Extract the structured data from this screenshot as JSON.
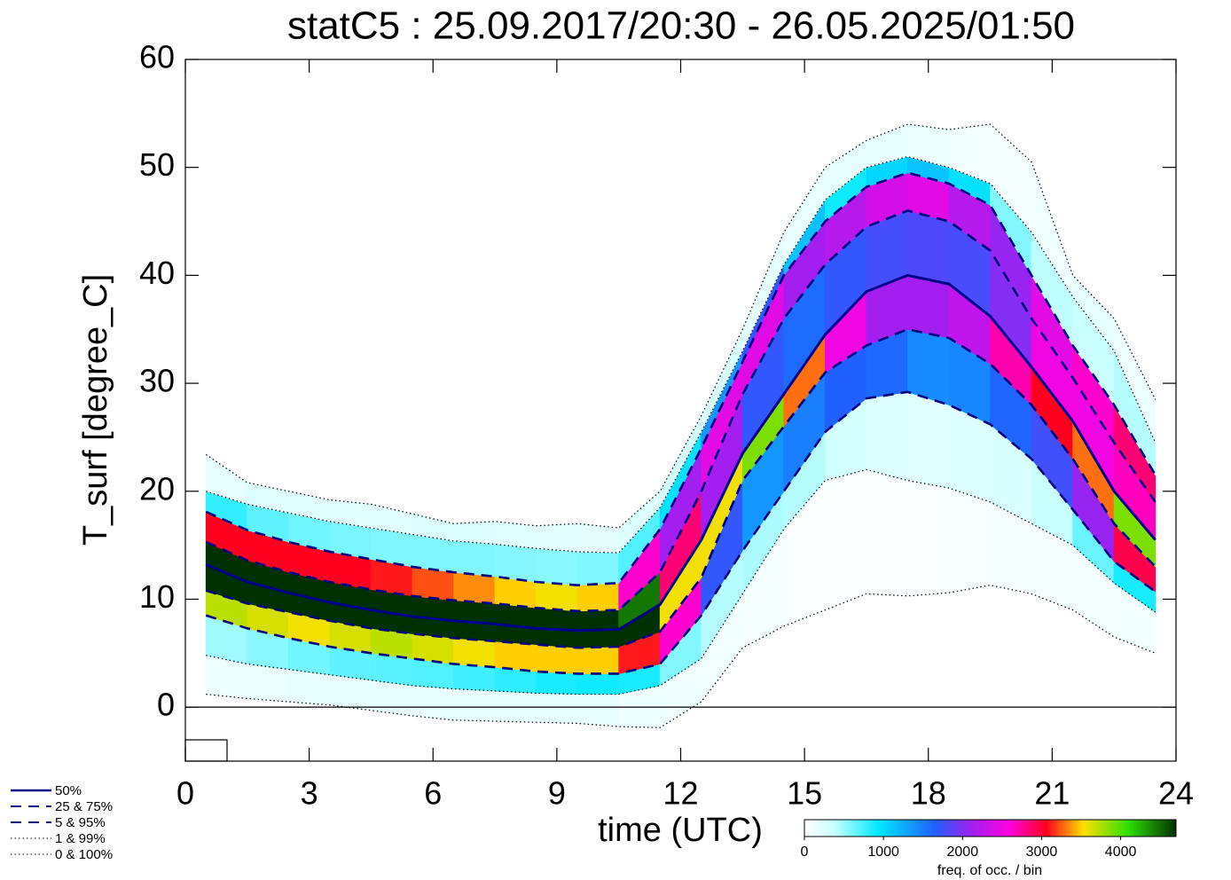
{
  "chart_data": {
    "type": "percentile-density",
    "title": "statC5 : 25.09.2017/20:30 - 26.05.2025/01:50",
    "x_label": "time (UTC)",
    "y_label": "T_surf [degree_C]",
    "xlim": [
      0,
      24
    ],
    "xticks": [
      0,
      3,
      6,
      9,
      12,
      15,
      18,
      21,
      24
    ],
    "ylim": [
      -5,
      60
    ],
    "yticks": [
      0,
      10,
      20,
      30,
      40,
      50,
      60
    ],
    "reference_line": 0,
    "x": [
      0.5,
      1.5,
      2.5,
      3.5,
      4.5,
      5.5,
      6.5,
      7.5,
      8.5,
      9.5,
      10.5,
      11.5,
      12.5,
      13.5,
      14.5,
      15.5,
      16.5,
      17.5,
      18.5,
      19.5,
      20.5,
      21.5,
      22.5,
      23.5
    ],
    "series": [
      {
        "name": "50%",
        "color": "#00008b",
        "style": "solid",
        "values": [
          13.2,
          11.6,
          10.6,
          9.7,
          9.0,
          8.4,
          8.0,
          7.7,
          7.3,
          7.1,
          7.2,
          9.5,
          15.5,
          23.5,
          29.0,
          34.5,
          38.5,
          40.0,
          39.2,
          36.2,
          31.5,
          26.5,
          20.0,
          15.5
        ]
      },
      {
        "name": "25 &  75%",
        "color": "#000080",
        "style": "dashed",
        "lower": [
          10.8,
          9.6,
          8.8,
          8.0,
          7.3,
          6.8,
          6.4,
          6.1,
          5.8,
          5.5,
          5.6,
          7.0,
          12.0,
          21.0,
          26.0,
          31.0,
          33.5,
          35.0,
          34.2,
          31.8,
          28.0,
          23.0,
          17.0,
          13.0
        ],
        "upper": [
          15.3,
          13.6,
          12.5,
          11.6,
          10.9,
          10.3,
          9.9,
          9.6,
          9.2,
          8.9,
          9.0,
          12.5,
          20.0,
          29.0,
          36.0,
          41.0,
          44.5,
          46.0,
          45.0,
          42.3,
          36.0,
          30.5,
          24.5,
          19.0
        ]
      },
      {
        "name": "5 &  95%",
        "color": "#000080",
        "style": "dashed",
        "lower": [
          8.5,
          7.3,
          6.4,
          5.6,
          5.0,
          4.5,
          4.0,
          3.7,
          3.3,
          3.1,
          3.1,
          4.0,
          8.5,
          14.5,
          20.0,
          25.5,
          28.6,
          29.2,
          28.0,
          26.2,
          23.0,
          18.3,
          13.5,
          10.7
        ],
        "upper": [
          18.1,
          16.4,
          15.3,
          14.4,
          13.7,
          13.0,
          12.5,
          12.1,
          11.6,
          11.3,
          11.5,
          16.5,
          24.0,
          32.0,
          40.0,
          45.0,
          48.2,
          49.5,
          48.5,
          46.5,
          40.0,
          33.5,
          28.0,
          21.5
        ]
      },
      {
        "name": "1 &  99%",
        "color": "#000000",
        "style": "dotted",
        "lower": [
          4.8,
          4.0,
          3.5,
          3.0,
          2.5,
          2.0,
          1.7,
          1.5,
          1.3,
          1.2,
          1.2,
          2.0,
          4.5,
          10.5,
          16.5,
          21.0,
          22.0,
          21.0,
          20.3,
          19.0,
          17.0,
          15.0,
          11.5,
          8.8
        ],
        "upper": [
          20.0,
          18.8,
          18.0,
          17.2,
          16.6,
          16.0,
          15.4,
          15.1,
          14.7,
          14.4,
          14.3,
          18.5,
          25.5,
          33.0,
          41.0,
          47.0,
          50.0,
          51.0,
          50.0,
          48.5,
          44.0,
          38.0,
          33.0,
          24.5
        ]
      },
      {
        "name": "0 & 100%",
        "color": "#000000",
        "style": "dotted",
        "lower": [
          1.2,
          0.8,
          0.5,
          0.2,
          -0.3,
          -0.8,
          -1.2,
          -1.3,
          -1.4,
          -1.5,
          -1.8,
          -1.9,
          0.5,
          5.5,
          7.5,
          9.0,
          10.5,
          10.3,
          10.6,
          11.3,
          10.5,
          9.0,
          6.5,
          5.0
        ],
        "upper": [
          23.4,
          20.8,
          20.0,
          19.2,
          18.8,
          17.9,
          17.0,
          17.2,
          16.8,
          17.0,
          16.6,
          20.0,
          27.0,
          35.0,
          44.0,
          50.0,
          52.5,
          54.0,
          53.5,
          54.0,
          50.5,
          40.0,
          36.0,
          28.5
        ]
      }
    ],
    "colorbar": {
      "label": "freq. of occ. / bin",
      "lim": [
        0,
        4700
      ],
      "ticks": [
        0,
        1000,
        2000,
        3000,
        4000
      ]
    }
  }
}
